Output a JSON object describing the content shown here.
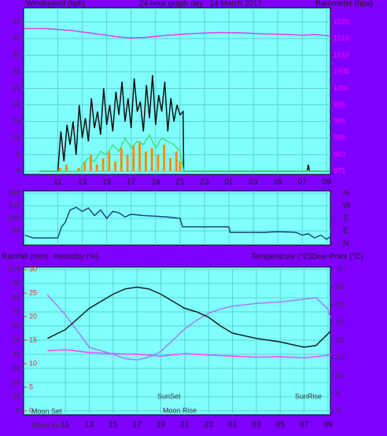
{
  "chart_data": [
    {
      "type": "line",
      "y_label": "Windspeed (kph)",
      "title": "24 hour graph day : 14 March 2017",
      "y2_label": "Barometer (hpa)",
      "xlim": [
        8.2,
        33.3
      ],
      "xticks": [
        11,
        13,
        15,
        17,
        19,
        21,
        23,
        {
          "value": 25,
          "label": "01"
        },
        {
          "value": 27,
          "label": "03"
        },
        {
          "value": 29,
          "label": "05"
        },
        {
          "value": 31,
          "label": "07"
        },
        {
          "value": 33,
          "label": "09"
        }
      ],
      "ylim": [
        0,
        45
      ],
      "yticks": [
        0,
        5,
        10,
        15,
        20,
        25,
        30,
        35,
        40,
        45
      ],
      "y2lim": [
        975,
        1020
      ],
      "y2ticks": [
        975,
        980,
        985,
        990,
        995,
        1000,
        1005,
        1010,
        1015,
        1020
      ],
      "grid": true,
      "series": [
        {
          "color": "#ff8c00",
          "style": "bar",
          "x": [
            11.2,
            11.7,
            12.2,
            12.7,
            13.2,
            13.7,
            14.2,
            14.7,
            15.2,
            15.7,
            16.2,
            16.7,
            17.2,
            17.7,
            18.2,
            18.7,
            19.2,
            19.7,
            20.2,
            20.7,
            21.0
          ],
          "values": [
            1,
            2,
            0,
            1,
            3,
            5,
            2,
            4,
            6,
            3,
            7,
            5,
            8,
            9,
            6,
            7,
            5,
            8,
            4,
            6,
            3
          ]
        },
        {
          "color": "#111111",
          "x": [
            9.5,
            10.9,
            11,
            11.25,
            11.5,
            11.75,
            12,
            12.25,
            12.5,
            12.75,
            13,
            13.25,
            13.5,
            13.75,
            14,
            14.25,
            14.5,
            14.75,
            15,
            15.25,
            15.5,
            15.75,
            16,
            16.25,
            16.5,
            16.75,
            17,
            17.25,
            17.5,
            17.75,
            18,
            18.25,
            18.5,
            18.75,
            19,
            19.25,
            19.5,
            19.75,
            20,
            20.25,
            20.5,
            20.75,
            21,
            21.25,
            21.3,
            31.4,
            31.5,
            31.6,
            33.3
          ],
          "values": [
            0,
            0,
            0,
            12,
            3,
            14,
            8,
            15,
            5,
            20,
            10,
            16,
            9,
            22,
            13,
            18,
            11,
            25,
            14,
            20,
            12,
            24,
            17,
            27,
            15,
            22,
            13,
            28,
            18,
            21,
            12,
            26,
            16,
            29,
            14,
            23,
            18,
            27,
            12,
            22,
            15,
            20,
            17,
            18,
            0,
            0,
            2,
            0,
            0
          ]
        },
        {
          "color": "#40e080",
          "x": [
            9.5,
            12.9,
            13,
            13.5,
            14,
            14.5,
            15,
            15.5,
            16,
            16.5,
            17,
            17.5,
            18,
            18.5,
            19,
            19.5,
            20,
            20.5,
            21,
            21.3,
            33.3
          ],
          "values": [
            0,
            0,
            2,
            4,
            3,
            6,
            5,
            8,
            6,
            10,
            7,
            9,
            8,
            11,
            7,
            10,
            9,
            8,
            6,
            0,
            0
          ]
        },
        {
          "color": "#e040e0",
          "axis": "y2",
          "x": [
            8.2,
            10,
            12,
            14,
            16,
            17,
            18,
            20,
            22,
            24,
            26,
            28,
            30,
            31,
            32,
            33.3
          ],
          "values": [
            1018,
            1018,
            1017.5,
            1016.5,
            1015.5,
            1015.2,
            1015.3,
            1016,
            1016.5,
            1016.8,
            1016.7,
            1016.4,
            1016.2,
            1016,
            1016.2,
            1015.8
          ]
        }
      ]
    },
    {
      "type": "line",
      "xlim": [
        8.2,
        33.3
      ],
      "xticks": [
        11,
        13,
        15,
        17,
        19,
        21,
        23,
        25,
        27,
        29,
        31,
        33
      ],
      "xtick_labels": false,
      "ylim": [
        0,
        360
      ],
      "yticks": [
        90,
        180,
        270,
        360
      ],
      "y2lim": [
        0,
        360
      ],
      "y2ticks": [
        {
          "value": 360,
          "label": "N"
        },
        {
          "value": 270,
          "label": "W"
        },
        {
          "value": 180,
          "label": "S"
        },
        {
          "value": 90,
          "label": "E"
        },
        {
          "value": 0,
          "label": "N"
        }
      ],
      "grid": true,
      "series": [
        {
          "color": "#1a4a7a",
          "x": [
            8.3,
            9,
            10,
            11,
            11.3,
            11.6,
            12,
            12.5,
            13,
            13.5,
            14,
            14.5,
            15,
            15.5,
            16,
            16.5,
            17,
            18,
            19,
            20,
            21,
            21.2,
            25,
            25.1,
            28,
            29,
            30.5,
            31,
            31.5,
            32,
            32.5,
            33,
            33.3
          ],
          "values": [
            60,
            40,
            40,
            40,
            120,
            150,
            240,
            260,
            230,
            255,
            200,
            240,
            180,
            230,
            220,
            190,
            210,
            200,
            195,
            190,
            180,
            120,
            120,
            80,
            80,
            85,
            80,
            60,
            70,
            40,
            60,
            30,
            50
          ]
        }
      ]
    },
    {
      "type": "line",
      "y3_label": "Rainfall (mm)",
      "y_label": "Humidity (%)",
      "y2_label": "Temperature (°C)Dew Point (°C)",
      "xlim": [
        7.5,
        33.2
      ],
      "xticks": [
        11,
        13,
        15,
        17,
        19,
        21,
        23,
        {
          "value": 25,
          "label": "01"
        },
        {
          "value": 27,
          "label": "03"
        },
        {
          "value": 29,
          "label": "05"
        },
        {
          "value": 31,
          "label": "07"
        },
        {
          "value": 33,
          "label": "09"
        }
      ],
      "ylim": [
        0,
        100
      ],
      "yticks": [
        0,
        10,
        20,
        30,
        40,
        50,
        60,
        70,
        80,
        90,
        100
      ],
      "y2lim": [
        0,
        40
      ],
      "y2ticks": [
        0,
        5,
        10,
        15,
        20,
        25,
        30,
        35,
        40
      ],
      "y3lim": [
        0,
        30
      ],
      "y3ticks": [
        0,
        5,
        10,
        15,
        20,
        25,
        30
      ],
      "grid": true,
      "annotations": [
        "Moon Set",
        "SunSet",
        "Moon Rise",
        "SunRise",
        "Moon Set"
      ],
      "series": [
        {
          "color": "#a080f0",
          "x": [
            9.5,
            11,
            13,
            15,
            16,
            17,
            18,
            19,
            20,
            21,
            22,
            23,
            24,
            25,
            27,
            29,
            31,
            32,
            33,
            33.2
          ],
          "values": [
            82,
            68,
            45,
            40,
            37,
            36,
            38,
            42,
            50,
            58,
            64,
            69,
            72,
            74,
            76,
            77,
            79,
            80,
            72,
            66
          ]
        },
        {
          "color": "#ff40ff",
          "axis": "y2",
          "x": [
            9.5,
            11,
            13,
            15,
            17,
            19,
            21,
            23,
            25,
            27,
            29,
            31,
            33.2
          ],
          "values": [
            17,
            17.3,
            16.5,
            16.2,
            16,
            15.5,
            16.2,
            15.8,
            15.5,
            15.2,
            15.3,
            15,
            15.8
          ]
        },
        {
          "color": "#102020",
          "axis": "y2",
          "x": [
            9.5,
            11,
            13,
            15,
            16,
            17,
            18,
            19,
            20,
            21,
            22,
            23,
            24,
            25,
            27,
            29,
            31,
            32,
            33.2
          ],
          "values": [
            20.5,
            23,
            29,
            33,
            34.5,
            35,
            34.5,
            33,
            31,
            29,
            28,
            26.5,
            24,
            22,
            20.5,
            19.5,
            18,
            18.5,
            22.5
          ]
        }
      ]
    }
  ]
}
